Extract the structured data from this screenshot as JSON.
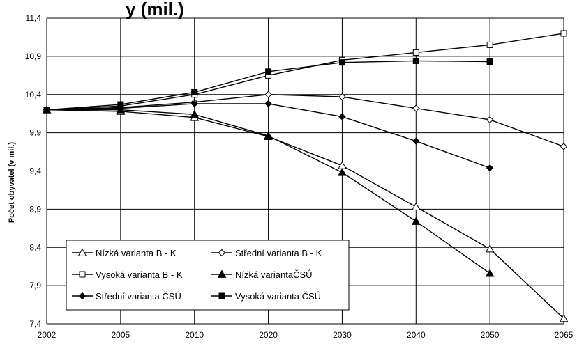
{
  "chart_data": {
    "type": "line",
    "title_fragment": "y (mil.)",
    "xlabel": "",
    "ylabel": "Počet obyvatel (v mil.)",
    "ylim": [
      7.4,
      11.4
    ],
    "grid": true,
    "legend_placement": "bottom-left",
    "y_ticks": [
      "11,4",
      "10,9",
      "10,4",
      "9,9",
      "9,4",
      "8,9",
      "8,4",
      "7,9",
      "7,4"
    ],
    "categories": [
      "2002",
      "2005",
      "2010",
      "2020",
      "2030",
      "2040",
      "2050",
      "2065"
    ],
    "series": [
      {
        "name": "Nízká varianta B - K",
        "marker": "triangle-open",
        "values": [
          10.2,
          10.18,
          10.1,
          9.85,
          9.47,
          8.93,
          8.38,
          7.47
        ]
      },
      {
        "name": "Střední varianta B - K",
        "marker": "diamond-open",
        "values": [
          10.2,
          10.23,
          10.3,
          10.4,
          10.37,
          10.22,
          10.07,
          9.72
        ]
      },
      {
        "name": "Vysoká varianta B - K",
        "marker": "square-open",
        "values": [
          10.2,
          10.25,
          10.4,
          10.65,
          10.85,
          10.95,
          11.05,
          11.2
        ]
      },
      {
        "name": "Nízká variantaČSÚ",
        "marker": "triangle-filled",
        "values": [
          10.2,
          10.2,
          10.14,
          9.86,
          9.38,
          8.74,
          8.06,
          null
        ]
      },
      {
        "name": "Střední varianta ČSÚ",
        "marker": "diamond-filled",
        "values": [
          10.2,
          10.22,
          10.28,
          10.28,
          10.11,
          9.79,
          9.44,
          null
        ]
      },
      {
        "name": "Vysoká varianta ČSÚ",
        "marker": "square-filled",
        "values": [
          10.2,
          10.27,
          10.43,
          10.7,
          10.82,
          10.84,
          10.83,
          null
        ]
      }
    ],
    "colors": {
      "line": "#000000",
      "grid": "#000000",
      "background": "#ffffff"
    }
  }
}
